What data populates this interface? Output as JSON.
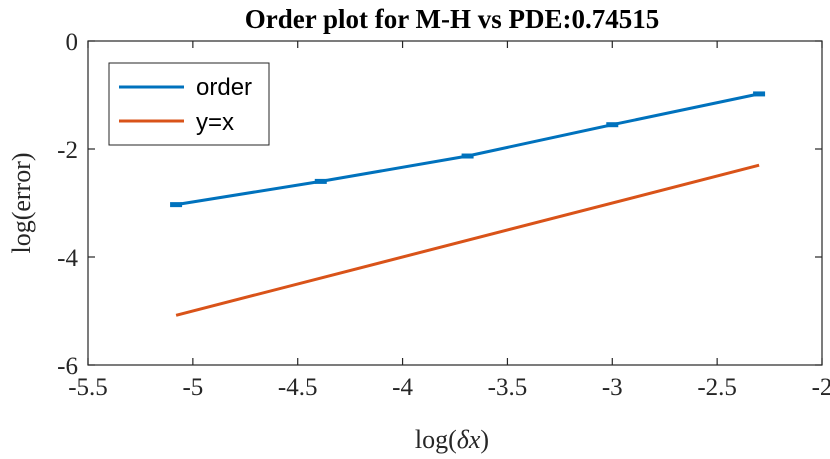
{
  "chart_data": {
    "type": "line",
    "title": "Order plot for M-H vs PDE:0.74515",
    "xlabel_prefix": "log(",
    "xlabel_symbol": "δx",
    "xlabel_suffix": ")",
    "ylabel": "log(error)",
    "xlim": [
      -5.5,
      -2
    ],
    "ylim": [
      -6,
      0
    ],
    "xticks": [
      -5.5,
      -5,
      -4.5,
      -4,
      -3.5,
      -3,
      -2.5,
      -2
    ],
    "xtick_labels": [
      "-5.5",
      "-5",
      "-4.5",
      "-4",
      "-3.5",
      "-3",
      "-2.5",
      "-2"
    ],
    "yticks": [
      -6,
      -4,
      -2,
      0
    ],
    "ytick_labels": [
      "-6",
      "-4",
      "-2",
      "0"
    ],
    "grid": false,
    "legend_position": "top-left",
    "series": [
      {
        "name": "order",
        "color": "#0072BD",
        "x": [
          -5.08,
          -4.39,
          -3.69,
          -3.0,
          -2.3
        ],
        "y": [
          -3.03,
          -2.6,
          -2.13,
          -1.55,
          -0.98
        ],
        "markers": true
      },
      {
        "name": "y=x",
        "color": "#D95319",
        "x": [
          -5.08,
          -2.3
        ],
        "y": [
          -5.08,
          -2.3
        ],
        "markers": false
      }
    ]
  }
}
